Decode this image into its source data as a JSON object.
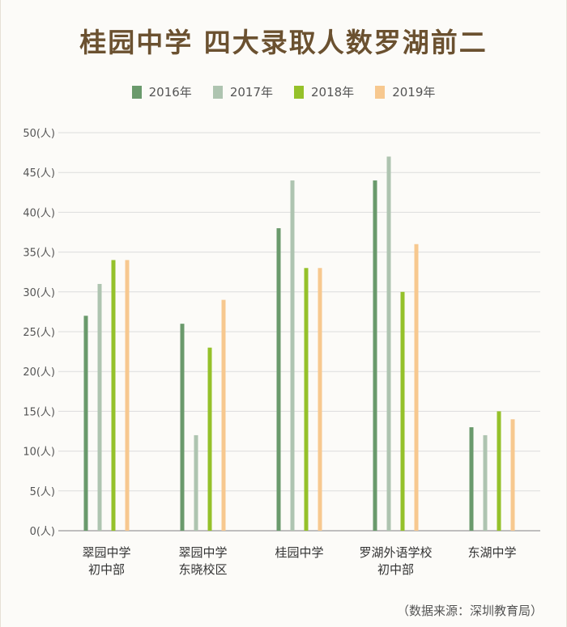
{
  "header": {
    "title": "桂园中学 四大录取人数罗湖前二"
  },
  "footer": {
    "source": "（数据来源：深圳教育局）"
  },
  "chart_data": {
    "type": "bar",
    "title": "桂园中学 四大录取人数罗湖前二",
    "categories": [
      [
        "翠园中学",
        "初中部"
      ],
      [
        "翠园中学",
        "东晓校区"
      ],
      [
        "桂园中学"
      ],
      [
        "罗湖外语学校",
        "初中部"
      ],
      [
        "东湖中学"
      ]
    ],
    "series": [
      {
        "name": "2016年",
        "color": "#6a9a6c",
        "values": [
          27,
          26,
          38,
          44,
          13
        ]
      },
      {
        "name": "2017年",
        "color": "#aec4b0",
        "values": [
          31,
          12,
          44,
          47,
          12
        ]
      },
      {
        "name": "2018年",
        "color": "#95c12a",
        "values": [
          34,
          23,
          33,
          30,
          15
        ]
      },
      {
        "name": "2019年",
        "color": "#f7c88f",
        "values": [
          34,
          29,
          33,
          36,
          14
        ]
      }
    ],
    "yticks": [
      "0(人)",
      "5(人)",
      "10(人)",
      "15(人)",
      "20(人)",
      "25(人)",
      "30(人)",
      "35(人)",
      "40(人)",
      "45(人)",
      "50(人)"
    ],
    "ylim": [
      0,
      50
    ],
    "grid": true,
    "legend_position": "top-center"
  }
}
